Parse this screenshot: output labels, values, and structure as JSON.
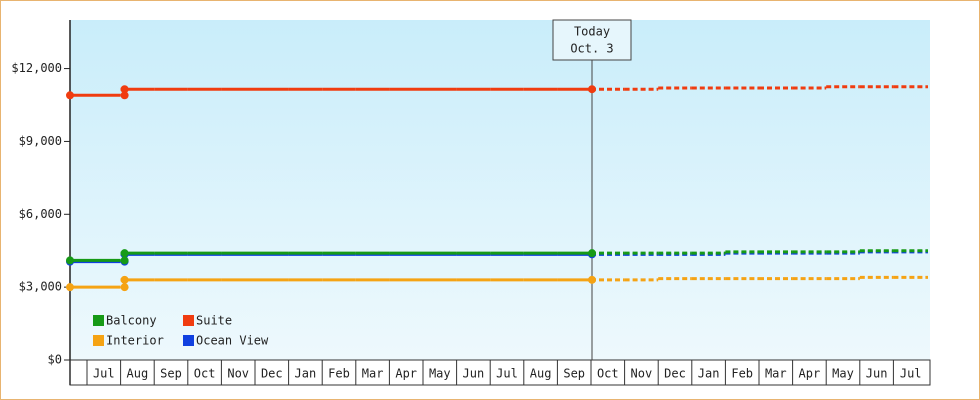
{
  "chart_data": {
    "type": "step-line",
    "categories": [
      null,
      "Jul",
      "Aug",
      "Sep",
      "Oct",
      "Nov",
      "Dec",
      "Jan",
      "Feb",
      "Mar",
      "Apr",
      "May",
      "Jun",
      "Jul",
      "Aug",
      "Sep",
      "Oct",
      "Nov",
      "Dec",
      "Jan",
      "Feb",
      "Mar",
      "Apr",
      "May",
      "Jun",
      "Jul"
    ],
    "series": [
      {
        "name": "Balcony",
        "color": "#169a16",
        "values": [
          4100,
          4100,
          4400,
          4400,
          4400,
          4400,
          4400,
          4400,
          4400,
          4400,
          4400,
          4400,
          4400,
          4400,
          4400,
          4400,
          4400,
          null,
          null,
          null,
          null,
          null,
          null,
          null,
          null,
          null
        ],
        "projected": [
          null,
          null,
          null,
          null,
          null,
          null,
          null,
          null,
          null,
          null,
          null,
          null,
          null,
          null,
          null,
          null,
          4400,
          4400,
          4400,
          4400,
          4450,
          4450,
          4450,
          4450,
          4500,
          4500
        ]
      },
      {
        "name": "Suite",
        "color": "#f03c10",
        "values": [
          10900,
          10900,
          11150,
          11150,
          11150,
          11150,
          11150,
          11150,
          11150,
          11150,
          11150,
          11150,
          11150,
          11150,
          11150,
          11150,
          11150,
          null,
          null,
          null,
          null,
          null,
          null,
          null,
          null,
          null
        ],
        "projected": [
          null,
          null,
          null,
          null,
          null,
          null,
          null,
          null,
          null,
          null,
          null,
          null,
          null,
          null,
          null,
          null,
          11150,
          11150,
          11200,
          11200,
          11200,
          11200,
          11200,
          11250,
          11250,
          11250
        ]
      },
      {
        "name": "Interior",
        "color": "#f5a314",
        "values": [
          3000,
          3000,
          3300,
          3300,
          3300,
          3300,
          3300,
          3300,
          3300,
          3300,
          3300,
          3300,
          3300,
          3300,
          3300,
          3300,
          3300,
          null,
          null,
          null,
          null,
          null,
          null,
          null,
          null,
          null
        ],
        "projected": [
          null,
          null,
          null,
          null,
          null,
          null,
          null,
          null,
          null,
          null,
          null,
          null,
          null,
          null,
          null,
          null,
          3300,
          3300,
          3350,
          3350,
          3350,
          3350,
          3350,
          3350,
          3400,
          3400
        ]
      },
      {
        "name": "Ocean View",
        "color": "#1040e0",
        "values": [
          4050,
          4050,
          4350,
          4350,
          4350,
          4350,
          4350,
          4350,
          4350,
          4350,
          4350,
          4350,
          4350,
          4350,
          4350,
          4350,
          4350,
          null,
          null,
          null,
          null,
          null,
          null,
          null,
          null,
          null
        ],
        "projected": [
          null,
          null,
          null,
          null,
          null,
          null,
          null,
          null,
          null,
          null,
          null,
          null,
          null,
          null,
          null,
          null,
          4350,
          4350,
          4350,
          4350,
          4400,
          4400,
          4400,
          4400,
          4450,
          4450
        ]
      }
    ],
    "today": {
      "label": "Today",
      "date": "Oct. 3"
    },
    "ylim": [
      0,
      14000
    ],
    "yticks": [
      {
        "value": 0,
        "label": "$0"
      },
      {
        "value": 3000,
        "label": "$3,000"
      },
      {
        "value": 6000,
        "label": "$6,000"
      },
      {
        "value": 9000,
        "label": "$9,000"
      },
      {
        "value": 12000,
        "label": "$12,000"
      }
    ],
    "legend": "bottom-left"
  }
}
